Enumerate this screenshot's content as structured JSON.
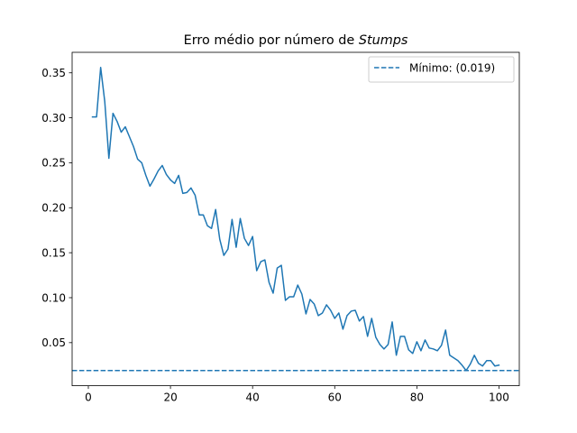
{
  "chart_data": {
    "type": "line",
    "title": "Erro médio por número de ",
    "title_emphasis": "Stumps",
    "xlabel": "",
    "ylabel": "",
    "xlim": [
      -3.95,
      104.95
    ],
    "ylim": [
      0.0021,
      0.3728
    ],
    "x_ticks": [
      0,
      20,
      40,
      60,
      80,
      100
    ],
    "y_ticks": [
      0.05,
      0.1,
      0.15,
      0.2,
      0.25,
      0.3,
      0.35
    ],
    "y_tick_labels": [
      "0.05",
      "0.10",
      "0.15",
      "0.20",
      "0.25",
      "0.30",
      "0.35"
    ],
    "grid": false,
    "legend_position": "top-right",
    "series": [
      {
        "name": "",
        "color": "#1f77b4",
        "style": "solid",
        "x": [
          1,
          2,
          3,
          4,
          5,
          6,
          7,
          8,
          9,
          10,
          11,
          12,
          13,
          14,
          15,
          16,
          17,
          18,
          19,
          20,
          21,
          22,
          23,
          24,
          25,
          26,
          27,
          28,
          29,
          30,
          31,
          32,
          33,
          34,
          35,
          36,
          37,
          38,
          39,
          40,
          41,
          42,
          43,
          44,
          45,
          46,
          47,
          48,
          49,
          50,
          51,
          52,
          53,
          54,
          55,
          56,
          57,
          58,
          59,
          60,
          61,
          62,
          63,
          64,
          65,
          66,
          67,
          68,
          69,
          70,
          71,
          72,
          73,
          74,
          75,
          76,
          77,
          78,
          79,
          80,
          81,
          82,
          83,
          84,
          85,
          86,
          87,
          88,
          89,
          90,
          91,
          92,
          93,
          94,
          95,
          96,
          97,
          98,
          99,
          100
        ],
        "y": [
          0.301,
          0.301,
          0.356,
          0.318,
          0.255,
          0.305,
          0.296,
          0.284,
          0.29,
          0.279,
          0.268,
          0.254,
          0.25,
          0.236,
          0.224,
          0.232,
          0.241,
          0.247,
          0.237,
          0.231,
          0.227,
          0.236,
          0.216,
          0.217,
          0.222,
          0.214,
          0.192,
          0.192,
          0.18,
          0.177,
          0.198,
          0.165,
          0.147,
          0.154,
          0.187,
          0.156,
          0.188,
          0.166,
          0.158,
          0.168,
          0.13,
          0.14,
          0.142,
          0.117,
          0.105,
          0.133,
          0.136,
          0.097,
          0.101,
          0.101,
          0.114,
          0.104,
          0.082,
          0.098,
          0.093,
          0.08,
          0.083,
          0.092,
          0.086,
          0.077,
          0.083,
          0.065,
          0.08,
          0.085,
          0.086,
          0.074,
          0.079,
          0.057,
          0.077,
          0.056,
          0.048,
          0.043,
          0.048,
          0.073,
          0.036,
          0.057,
          0.057,
          0.042,
          0.038,
          0.051,
          0.041,
          0.053,
          0.044,
          0.043,
          0.041,
          0.047,
          0.064,
          0.036,
          0.033,
          0.03,
          0.025,
          0.019,
          0.026,
          0.036,
          0.027,
          0.024,
          0.03,
          0.03,
          0.024,
          0.025
        ]
      },
      {
        "name": "Mínimo: (0.019)",
        "color": "#1f77b4",
        "style": "dashed",
        "y_constant": 0.019
      }
    ]
  }
}
